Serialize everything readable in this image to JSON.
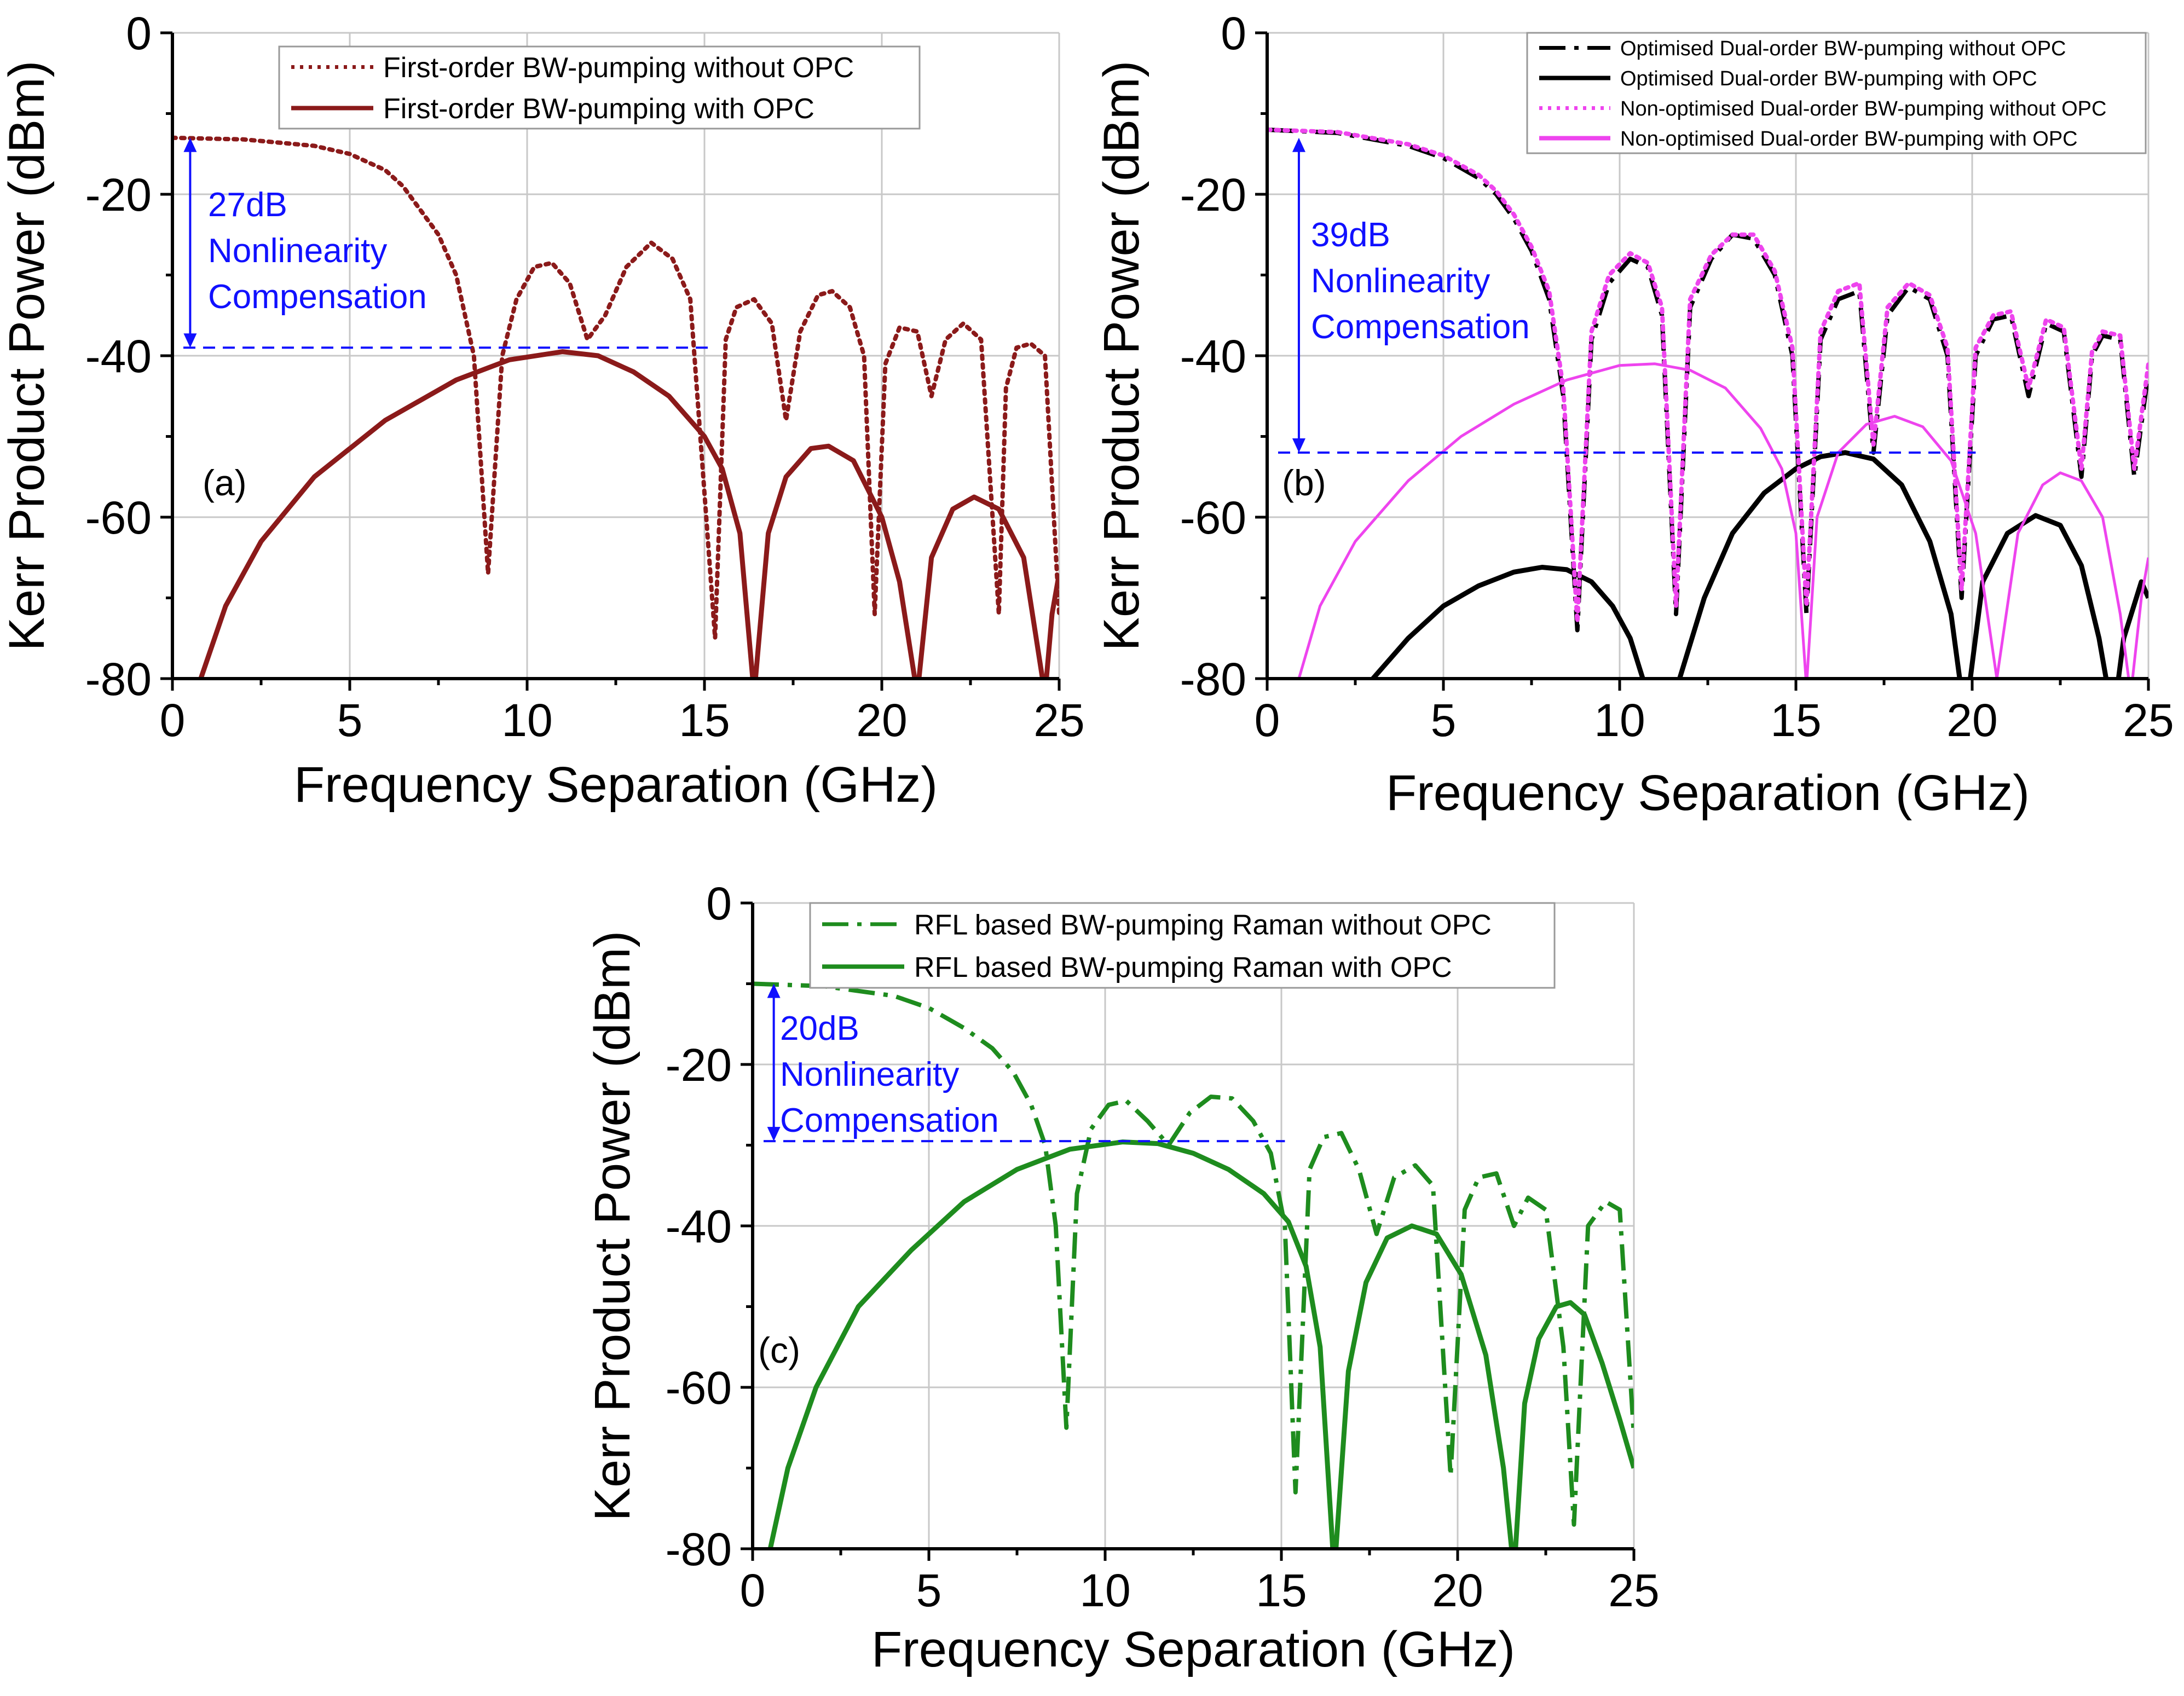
{
  "chart_data": [
    {
      "id": "a",
      "type": "line",
      "panel_label": "(a)",
      "xlabel": "Frequency Separation (GHz)",
      "ylabel": "Kerr Product Power (dBm)",
      "xlim": [
        0,
        25
      ],
      "ylim": [
        -80,
        0
      ],
      "xticks": [
        0,
        5,
        10,
        15,
        20,
        25
      ],
      "yticks": [
        0,
        -20,
        -40,
        -60,
        -80
      ],
      "grid": true,
      "legend_position": "top",
      "annotation": {
        "lines": [
          "27dB",
          "Nonlinearity",
          "Compensation"
        ],
        "arrow_x": 0.5,
        "arrow_y_top": -13,
        "arrow_y_bottom": -39,
        "dash_x_end": 15.2,
        "dash_y": -39
      },
      "series": [
        {
          "name": "First-order BW-pumping without OPC",
          "color": "#8b1a1a",
          "style": "dotted",
          "x": [
            0,
            2,
            4,
            5,
            6,
            6.5,
            7,
            7.5,
            8,
            8.5,
            8.9,
            9.3,
            9.7,
            10.2,
            10.7,
            11.2,
            11.7,
            12.2,
            12.8,
            13.5,
            14.1,
            14.6,
            15.3,
            15.6,
            15.9,
            16.4,
            16.9,
            17.3,
            17.7,
            18.2,
            18.6,
            19.1,
            19.5,
            19.8,
            20.1,
            20.5,
            21.0,
            21.4,
            21.8,
            22.3,
            22.8,
            23.3,
            23.5,
            23.8,
            24.2,
            24.6,
            25.0
          ],
          "y": [
            -13,
            -13.2,
            -14,
            -15,
            -17,
            -19,
            -22,
            -25,
            -30,
            -40,
            -67,
            -40,
            -33,
            -29,
            -28.5,
            -31,
            -38,
            -35,
            -29,
            -26,
            -28,
            -33,
            -75,
            -38,
            -34,
            -33,
            -36,
            -48,
            -37,
            -32.5,
            -32,
            -34,
            -40,
            -72,
            -41,
            -36.5,
            -37,
            -45,
            -38,
            -36,
            -38,
            -72,
            -44,
            -39,
            -38.5,
            -40,
            -72
          ]
        },
        {
          "name": "First-order BW-pumping with OPC",
          "color": "#8b1a1a",
          "style": "solid",
          "x": [
            0.8,
            1.5,
            2.5,
            4,
            6,
            8,
            9.5,
            11,
            12,
            13,
            14,
            15,
            15.5,
            16,
            16.4,
            16.8,
            17.3,
            18,
            18.5,
            19.2,
            20,
            20.5,
            21.0,
            21.4,
            22,
            22.6,
            23.3,
            24,
            24.6,
            24.8,
            25
          ],
          "y": [
            -80,
            -71,
            -63,
            -55,
            -48,
            -43,
            -40.5,
            -39.5,
            -40,
            -42,
            -45,
            -50,
            -54,
            -62,
            -82,
            -62,
            -55,
            -51.5,
            -51.2,
            -53,
            -60,
            -68,
            -82,
            -65,
            -59,
            -57.5,
            -59,
            -65,
            -82,
            -72,
            -67
          ]
        }
      ]
    },
    {
      "id": "b",
      "type": "line",
      "panel_label": "(b)",
      "xlabel": "Frequency Separation (GHz)",
      "ylabel": "Kerr Product Power (dBm)",
      "xlim": [
        0,
        25
      ],
      "ylim": [
        -80,
        0
      ],
      "xticks": [
        0,
        5,
        10,
        15,
        20,
        25
      ],
      "yticks": [
        0,
        -20,
        -40,
        -60,
        -80
      ],
      "grid": true,
      "legend_position": "top-right",
      "annotation": {
        "lines": [
          "39dB",
          "Nonlinearity",
          "Compensation"
        ],
        "arrow_x": 0.9,
        "arrow_y_top": -13,
        "arrow_y_bottom": -52,
        "dash_x_end": 20.1,
        "dash_y": -52
      },
      "series": [
        {
          "name": "Optimised Dual-order BW-pumping without OPC",
          "color": "#000000",
          "style": "dashdot",
          "x": [
            0,
            2,
            4,
            5,
            6,
            6.5,
            7,
            7.5,
            8,
            8.4,
            8.8,
            9.2,
            9.7,
            10.3,
            10.8,
            11.2,
            11.6,
            12.0,
            12.6,
            13.2,
            13.8,
            14.4,
            14.9,
            15.3,
            15.7,
            16.2,
            16.8,
            17.2,
            17.6,
            18.2,
            18.8,
            19.3,
            19.7,
            20.1,
            20.6,
            21.1,
            21.6,
            22.1,
            22.6,
            23.1,
            23.4,
            23.7,
            24.2,
            24.6,
            25.0
          ],
          "y": [
            -12,
            -12.4,
            -14,
            -15.5,
            -18,
            -20,
            -23,
            -27,
            -33,
            -45,
            -74,
            -38,
            -31,
            -28,
            -29,
            -35,
            -72,
            -34,
            -28,
            -25,
            -25.5,
            -30,
            -40,
            -72,
            -38,
            -33,
            -32,
            -52,
            -35,
            -31.5,
            -33,
            -40,
            -70,
            -40,
            -35.5,
            -35,
            -45,
            -36,
            -37,
            -55,
            -40,
            -37.5,
            -38,
            -55,
            -42
          ]
        },
        {
          "name": "Optimised Dual-order BW-pumping with OPC",
          "color": "#000000",
          "style": "solid",
          "x": [
            3,
            4,
            5,
            6,
            7,
            7.8,
            8.5,
            9.2,
            9.8,
            10.3,
            10.8,
            11.2,
            11.7,
            12.4,
            13.2,
            14.1,
            15.0,
            15.7,
            16.4,
            17.2,
            18.0,
            18.8,
            19.4,
            19.8,
            20.3,
            21.0,
            21.8,
            22.5,
            23.1,
            23.6,
            24.0,
            24.3,
            24.8,
            25
          ],
          "y": [
            -80,
            -75,
            -71,
            -68.5,
            -66.8,
            -66.2,
            -66.5,
            -68,
            -71,
            -75,
            -82,
            -85,
            -80,
            -70,
            -62,
            -57,
            -54,
            -52.5,
            -52,
            -52.8,
            -56,
            -63,
            -72,
            -85,
            -68,
            -62,
            -59.8,
            -61,
            -66,
            -75,
            -85,
            -75,
            -68,
            -70
          ]
        },
        {
          "name": "Non-optimised Dual-order BW-pumping without OPC",
          "color": "#ee44ee",
          "style": "dotted",
          "x": [
            0,
            2,
            4,
            5,
            6,
            6.5,
            7,
            7.5,
            8,
            8.4,
            8.8,
            9.2,
            9.7,
            10.3,
            10.8,
            11.2,
            11.6,
            12.0,
            12.6,
            13.2,
            13.8,
            14.4,
            14.9,
            15.3,
            15.7,
            16.2,
            16.8,
            17.2,
            17.6,
            18.2,
            18.8,
            19.3,
            19.7,
            20.1,
            20.6,
            21.1,
            21.6,
            22.1,
            22.6,
            23.1,
            23.4,
            23.7,
            24.2,
            24.6,
            25.0
          ],
          "y": [
            -12,
            -12.3,
            -13.8,
            -15.2,
            -17.6,
            -19.6,
            -22.5,
            -26.5,
            -32,
            -44,
            -73,
            -37,
            -30,
            -27.3,
            -28.5,
            -34,
            -71,
            -33,
            -27.5,
            -25,
            -25,
            -29.5,
            -39,
            -71,
            -37,
            -32,
            -31,
            -51,
            -34,
            -31,
            -32.5,
            -39,
            -69,
            -39,
            -35,
            -34.5,
            -44,
            -35.5,
            -36.5,
            -54,
            -39.5,
            -37,
            -37.5,
            -54,
            -41
          ]
        },
        {
          "name": "Non-optimised Dual-order BW-pumping with OPC",
          "color": "#ee44ee",
          "style": "solid",
          "x": [
            0.9,
            1.5,
            2.5,
            4,
            5.5,
            7,
            8.5,
            10,
            11,
            12,
            13,
            14,
            14.6,
            15.0,
            15.3,
            15.6,
            16.2,
            17.0,
            17.8,
            18.6,
            19.4,
            20.1,
            20.7,
            21.3,
            22.0,
            22.5,
            23.1,
            23.7,
            24.2,
            24.5,
            24.8,
            25
          ],
          "y": [
            -80,
            -71,
            -63,
            -55.5,
            -50,
            -46,
            -43,
            -41.2,
            -41,
            -41.8,
            -44,
            -49,
            -54,
            -62,
            -81,
            -60,
            -52,
            -48.5,
            -47.5,
            -48.8,
            -53,
            -62,
            -80,
            -62,
            -56,
            -54.5,
            -55.5,
            -60,
            -72,
            -82,
            -70,
            -65
          ]
        }
      ]
    },
    {
      "id": "c",
      "type": "line",
      "panel_label": "(c)",
      "xlabel": "Frequency Separation (GHz)",
      "ylabel": "Kerr Product Power (dBm)",
      "xlim": [
        0,
        25
      ],
      "ylim": [
        -80,
        0
      ],
      "xticks": [
        0,
        5,
        10,
        15,
        20,
        25
      ],
      "yticks": [
        0,
        -20,
        -40,
        -60,
        -80
      ],
      "grid": true,
      "legend_position": "top",
      "annotation": {
        "lines": [
          "20dB",
          "Nonlinearity",
          "Compensation"
        ],
        "arrow_x": 0.6,
        "arrow_y_top": -10,
        "arrow_y_bottom": -29.5,
        "dash_x_end": 15.1,
        "dash_y": -29.5
      },
      "series": [
        {
          "name": "RFL based BW-pumping Raman without OPC",
          "color": "#1e8c1e",
          "style": "dashdot",
          "x": [
            0,
            2,
            4,
            5,
            6,
            6.8,
            7.4,
            7.9,
            8.3,
            8.6,
            8.9,
            9.2,
            9.6,
            10.1,
            10.6,
            11.2,
            11.8,
            12.4,
            13.0,
            13.6,
            14.2,
            14.7,
            15.1,
            15.4,
            15.8,
            16.2,
            16.7,
            17.2,
            17.7,
            18.2,
            18.8,
            19.3,
            19.8,
            20.2,
            20.6,
            21.1,
            21.6,
            22.0,
            22.5,
            23.0,
            23.3,
            23.7,
            24.2,
            24.6,
            25.0
          ],
          "y": [
            -10,
            -10.3,
            -11.5,
            -13,
            -15.5,
            -18,
            -21,
            -25,
            -30,
            -40,
            -65,
            -36,
            -28,
            -25,
            -24.5,
            -27,
            -30,
            -26,
            -24,
            -24.2,
            -27,
            -31,
            -40,
            -73,
            -33,
            -29,
            -28.5,
            -33,
            -41,
            -34,
            -32.5,
            -35,
            -71,
            -38,
            -34,
            -33.5,
            -40,
            -36.5,
            -38,
            -55,
            -77,
            -40,
            -37,
            -38,
            -66
          ]
        },
        {
          "name": "RFL based BW-pumping Raman with OPC",
          "color": "#1e8c1e",
          "style": "solid",
          "x": [
            0.5,
            1.0,
            1.8,
            3,
            4.5,
            6,
            7.5,
            9,
            10.5,
            11.5,
            12.5,
            13.5,
            14.5,
            15.2,
            15.7,
            16.1,
            16.5,
            16.9,
            17.4,
            18,
            18.7,
            19.4,
            20.1,
            20.8,
            21.3,
            21.6,
            21.9,
            22.3,
            22.8,
            23.2,
            23.6,
            24.1,
            24.6,
            25.0
          ],
          "y": [
            -80,
            -70,
            -60,
            -50,
            -43,
            -37,
            -33,
            -30.5,
            -29.6,
            -29.8,
            -31,
            -33,
            -36,
            -39.5,
            -45,
            -55,
            -83,
            -58,
            -47,
            -41.5,
            -40,
            -41,
            -46,
            -56,
            -70,
            -83,
            -62,
            -54,
            -50,
            -49.5,
            -51,
            -57,
            -64,
            -70
          ]
        }
      ]
    }
  ]
}
